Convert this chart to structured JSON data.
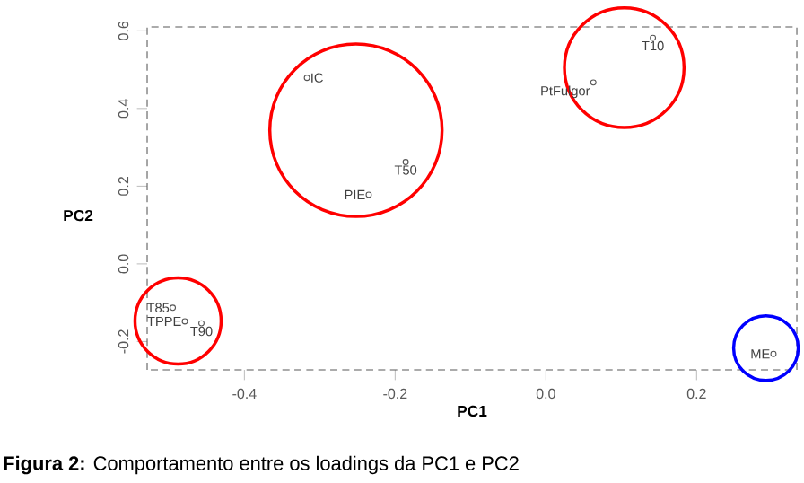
{
  "chart_data": {
    "type": "scatter",
    "xlabel": "PC1",
    "ylabel": "PC2",
    "xlim": [
      -0.529,
      0.333
    ],
    "ylim": [
      -0.273,
      0.61
    ],
    "xticks": [
      -0.4,
      -0.2,
      {
        "value": 0,
        "label": "0.0"
      },
      0.2
    ],
    "yticks": [
      -0.2,
      {
        "value": 0,
        "label": "0.0"
      },
      0.2,
      0.4,
      0.6
    ],
    "grid": false,
    "marker": "circle",
    "series": [
      {
        "color": "#555555",
        "x": [
          -0.317,
          -0.186,
          -0.235,
          0.063,
          0.142,
          -0.495,
          -0.479,
          -0.457,
          0.302
        ],
        "values": [
          0.479,
          0.262,
          0.178,
          0.467,
          0.582,
          -0.113,
          -0.148,
          -0.153,
          -0.232
        ]
      }
    ],
    "annotations": [
      {
        "text": "IC",
        "x": -0.317,
        "y": 0.479
      },
      {
        "text": "T50",
        "x": -0.186,
        "y": 0.262
      },
      {
        "text": "PIE",
        "x": -0.235,
        "y": 0.178
      },
      {
        "text": "PtFulgor",
        "x": 0.063,
        "y": 0.467
      },
      {
        "text": "T10",
        "x": 0.142,
        "y": 0.582
      },
      {
        "text": "T85",
        "x": -0.495,
        "y": -0.113
      },
      {
        "text": "TPPE",
        "x": -0.479,
        "y": -0.148
      },
      {
        "text": "T90",
        "x": -0.457,
        "y": -0.153
      },
      {
        "text": "ME",
        "x": 0.302,
        "y": -0.232
      },
      "**Figura 2:** Comportamento entre os loadings da PC1 e PC2"
    ]
  }
}
